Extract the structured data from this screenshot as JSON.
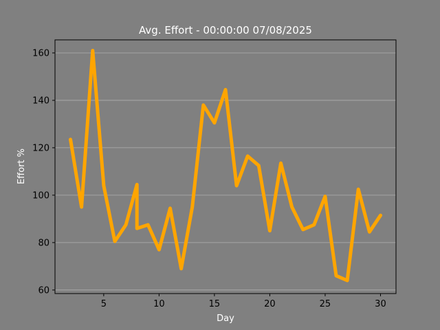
{
  "chart_data": {
    "type": "line",
    "title": "Avg. Effort - 00:00:00 07/08/2025",
    "xlabel": "Day",
    "ylabel": "Effort %",
    "xlim": [
      0.6,
      31.4
    ],
    "ylim": [
      58.5,
      165.5
    ],
    "xticks": [
      5,
      10,
      15,
      20,
      25,
      30
    ],
    "yticks": [
      60,
      80,
      100,
      120,
      140,
      160
    ],
    "grid": "horizontal",
    "colors": {
      "background": "#808080",
      "line": "#ffa500",
      "grid": "#b0b0b0",
      "axes": "#000000",
      "text": "#ffffff"
    },
    "series": [
      {
        "x": [
          2,
          3,
          4,
          5,
          6,
          7,
          8,
          8,
          9,
          10,
          11,
          12,
          13,
          14,
          15,
          16,
          17,
          18,
          19,
          20,
          21,
          22,
          23,
          24,
          25,
          26,
          27,
          28,
          29,
          30
        ],
        "y": [
          123.5,
          95,
          161,
          104,
          80.5,
          87.5,
          104.5,
          86,
          87.5,
          77,
          94.5,
          69,
          95,
          138,
          130.5,
          144.5,
          104,
          116.5,
          112.5,
          85,
          113.5,
          95,
          85.5,
          87.5,
          99.5,
          66,
          64,
          102.5,
          84.5,
          91.5
        ]
      }
    ]
  }
}
